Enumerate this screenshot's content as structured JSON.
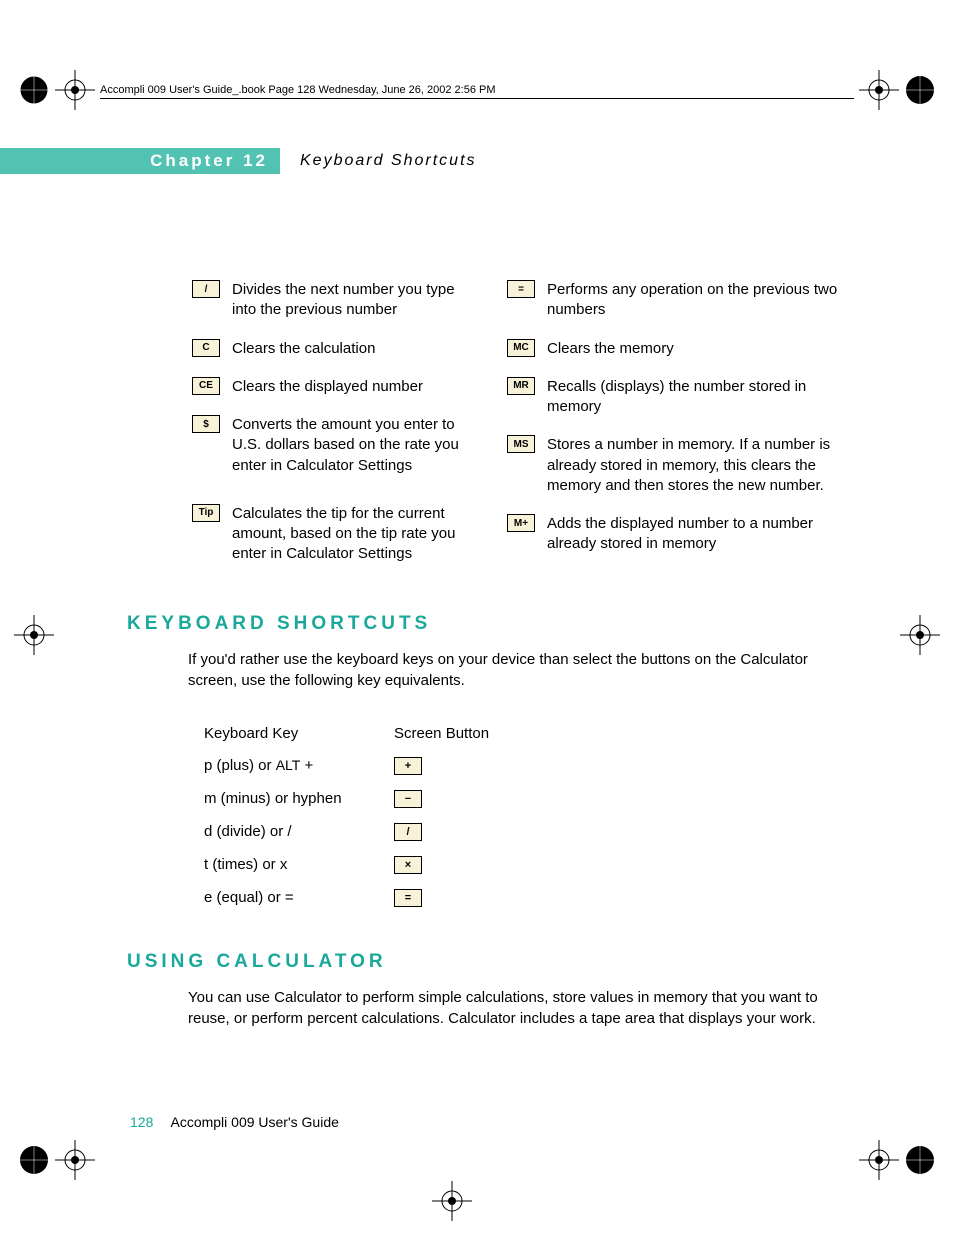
{
  "header": {
    "running": "Accompli 009 User's Guide_.book  Page 128  Wednesday, June 26, 2002  2:56 PM",
    "chapter_label": "Chapter 12",
    "chapter_title": "Keyboard Shortcuts"
  },
  "buttons_left": [
    {
      "key": "/",
      "desc": "Divides the next number you type into the previous number"
    },
    {
      "key": "C",
      "desc": "Clears the calculation"
    },
    {
      "key": "CE",
      "desc": "Clears the displayed number"
    },
    {
      "key": "$",
      "desc": "Converts the amount you enter to U.S. dollars based on the rate you enter in Calculator Settings"
    },
    {
      "key": "Tip",
      "desc": "Calculates the tip for the current amount, based on the tip rate you enter in Calculator Settings"
    }
  ],
  "buttons_right": [
    {
      "key": "=",
      "desc": "Performs any operation on the previous two numbers"
    },
    {
      "key": "MC",
      "desc": "Clears the memory"
    },
    {
      "key": "MR",
      "desc": "Recalls (displays) the number stored in memory"
    },
    {
      "key": "MS",
      "desc": "Stores a number in memory. If a number is already stored in memory, this clears the memory and then stores the new number."
    },
    {
      "key": "M+",
      "desc": "Adds the displayed number to a number already stored in memory"
    }
  ],
  "sections": {
    "keyboard_heading": "KEYBOARD SHORTCUTS",
    "keyboard_intro": "If you'd rather use the keyboard keys on your device than select the buttons on the Calculator screen, use the following key equivalents.",
    "using_heading": "USING CALCULATOR",
    "using_body": "You can use Calculator to perform simple calculations, store values in memory that you want to reuse, or perform percent calculations. Calculator includes a tape area that displays your work."
  },
  "shortcut_table": {
    "col1": "Keyboard Key",
    "col2": "Screen Button",
    "rows": [
      {
        "key_html": "p (plus) or <span class=\"smallcaps\">ALT</span> +",
        "btn": "+"
      },
      {
        "key_html": "m (minus) or hyphen",
        "btn": "−"
      },
      {
        "key_html": "d (divide) or /",
        "btn": "/"
      },
      {
        "key_html": "t (times) or x",
        "btn": "×"
      },
      {
        "key_html": "e (equal) or =",
        "btn": "="
      }
    ]
  },
  "footer": {
    "page": "128",
    "title": "Accompli 009 User's Guide"
  },
  "colors": {
    "accent": "#1aa89a",
    "bar": "#52c3b3",
    "key_bg": "#f7f2d8"
  }
}
